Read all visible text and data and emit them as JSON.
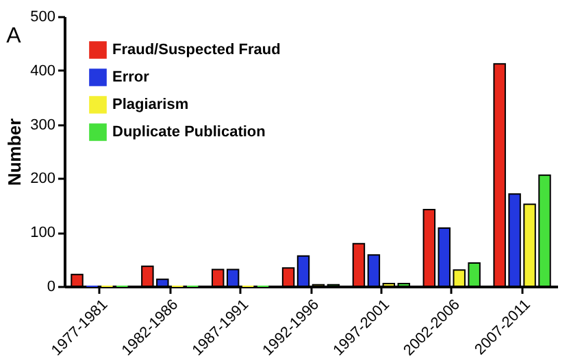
{
  "chart_data": {
    "type": "bar",
    "annotations": [
      "A"
    ],
    "ylabel": "Number",
    "categories": [
      "1977-1981",
      "1982-1986",
      "1987-1991",
      "1992-1996",
      "1997-2001",
      "2002-2006",
      "2007-2011"
    ],
    "series": [
      {
        "name": "Fraud/Suspected Fraud",
        "color": "#e8291c",
        "values": [
          22,
          37,
          31,
          34,
          79,
          142,
          412
        ]
      },
      {
        "name": "Error",
        "color": "#2338e0",
        "values": [
          0,
          13,
          31,
          56,
          58,
          108,
          171
        ]
      },
      {
        "name": "Plagiarism",
        "color": "#f5f032",
        "values": [
          0,
          0,
          0,
          3,
          5,
          30,
          152
        ]
      },
      {
        "name": "Duplicate Publication",
        "color": "#46e03c",
        "values": [
          0,
          0,
          0,
          3,
          5,
          43,
          206
        ]
      }
    ],
    "ylim": [
      0,
      500
    ],
    "yticks": [
      0,
      100,
      200,
      300,
      400,
      500
    ],
    "legend": "top left"
  }
}
